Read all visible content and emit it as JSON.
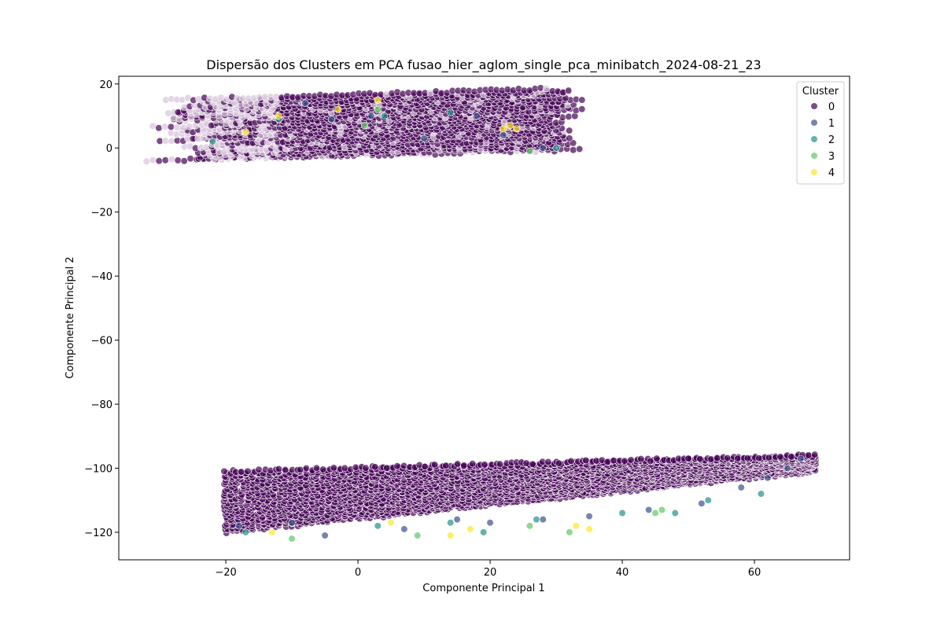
{
  "chart_data": {
    "type": "scatter",
    "title": "Dispersão dos Clusters em PCA fusao_hier_aglom_single_pca_minibatch_2024-08-21_23",
    "xlabel": "Componente Principal 1",
    "ylabel": "Componente Principal 2",
    "xlim": [
      -36.2,
      74.4
    ],
    "ylim": [
      -128.6,
      22.4
    ],
    "xticks": [
      -20,
      0,
      20,
      40,
      60
    ],
    "yticks": [
      20,
      0,
      -20,
      -40,
      -60,
      -80,
      -100,
      -120
    ],
    "grid": false,
    "legend": {
      "title": "Cluster",
      "placement": "top-right"
    },
    "marker_opacity": 0.7,
    "series": [
      {
        "name": "0",
        "color": "#440154",
        "regions": [
          {
            "x_range": [
              -31,
              34
            ],
            "y_range": [
              -5,
              16
            ]
          },
          {
            "x_range": [
              -20,
              69
            ],
            "y_range": [
              -121,
              -95
            ]
          }
        ]
      },
      {
        "name": "1",
        "color": "#3b528b",
        "points": [
          [
            -8,
            14
          ],
          [
            -4,
            9
          ],
          [
            2,
            10
          ],
          [
            10,
            3
          ],
          [
            18,
            10
          ],
          [
            22,
            4
          ],
          [
            28,
            0
          ],
          [
            -18,
            -118
          ],
          [
            -10,
            -117
          ],
          [
            -5,
            -121
          ],
          [
            7,
            -119
          ],
          [
            15,
            -116
          ],
          [
            20,
            -117
          ],
          [
            28,
            -116
          ],
          [
            35,
            -115
          ],
          [
            44,
            -113
          ],
          [
            52,
            -111
          ],
          [
            58,
            -106
          ],
          [
            62,
            -103
          ],
          [
            65,
            -100
          ],
          [
            67,
            -97
          ]
        ]
      },
      {
        "name": "2",
        "color": "#21918c",
        "points": [
          [
            -22,
            2
          ],
          [
            -12,
            9
          ],
          [
            4,
            10
          ],
          [
            14,
            11
          ],
          [
            30,
            0
          ],
          [
            -17,
            -120
          ],
          [
            3,
            -118
          ],
          [
            14,
            -117
          ],
          [
            19,
            -120
          ],
          [
            27,
            -116
          ],
          [
            40,
            -114
          ],
          [
            48,
            -114
          ],
          [
            53,
            -110
          ],
          [
            61,
            -108
          ]
        ]
      },
      {
        "name": "3",
        "color": "#5ec962",
        "points": [
          [
            1,
            7
          ],
          [
            3,
            12
          ],
          [
            26,
            -1
          ],
          [
            -10,
            -122
          ],
          [
            9,
            -121
          ],
          [
            26,
            -118
          ],
          [
            32,
            -120
          ],
          [
            45,
            -114
          ],
          [
            46,
            -113
          ]
        ]
      },
      {
        "name": "4",
        "color": "#fde725",
        "points": [
          [
            -17,
            5
          ],
          [
            -12,
            10
          ],
          [
            -3,
            12
          ],
          [
            3,
            15
          ],
          [
            22,
            6
          ],
          [
            23,
            7
          ],
          [
            24,
            6
          ],
          [
            -13,
            -120
          ],
          [
            5,
            -117
          ],
          [
            14,
            -121
          ],
          [
            17,
            -119
          ],
          [
            33,
            -118
          ],
          [
            35,
            -119
          ]
        ]
      }
    ]
  }
}
